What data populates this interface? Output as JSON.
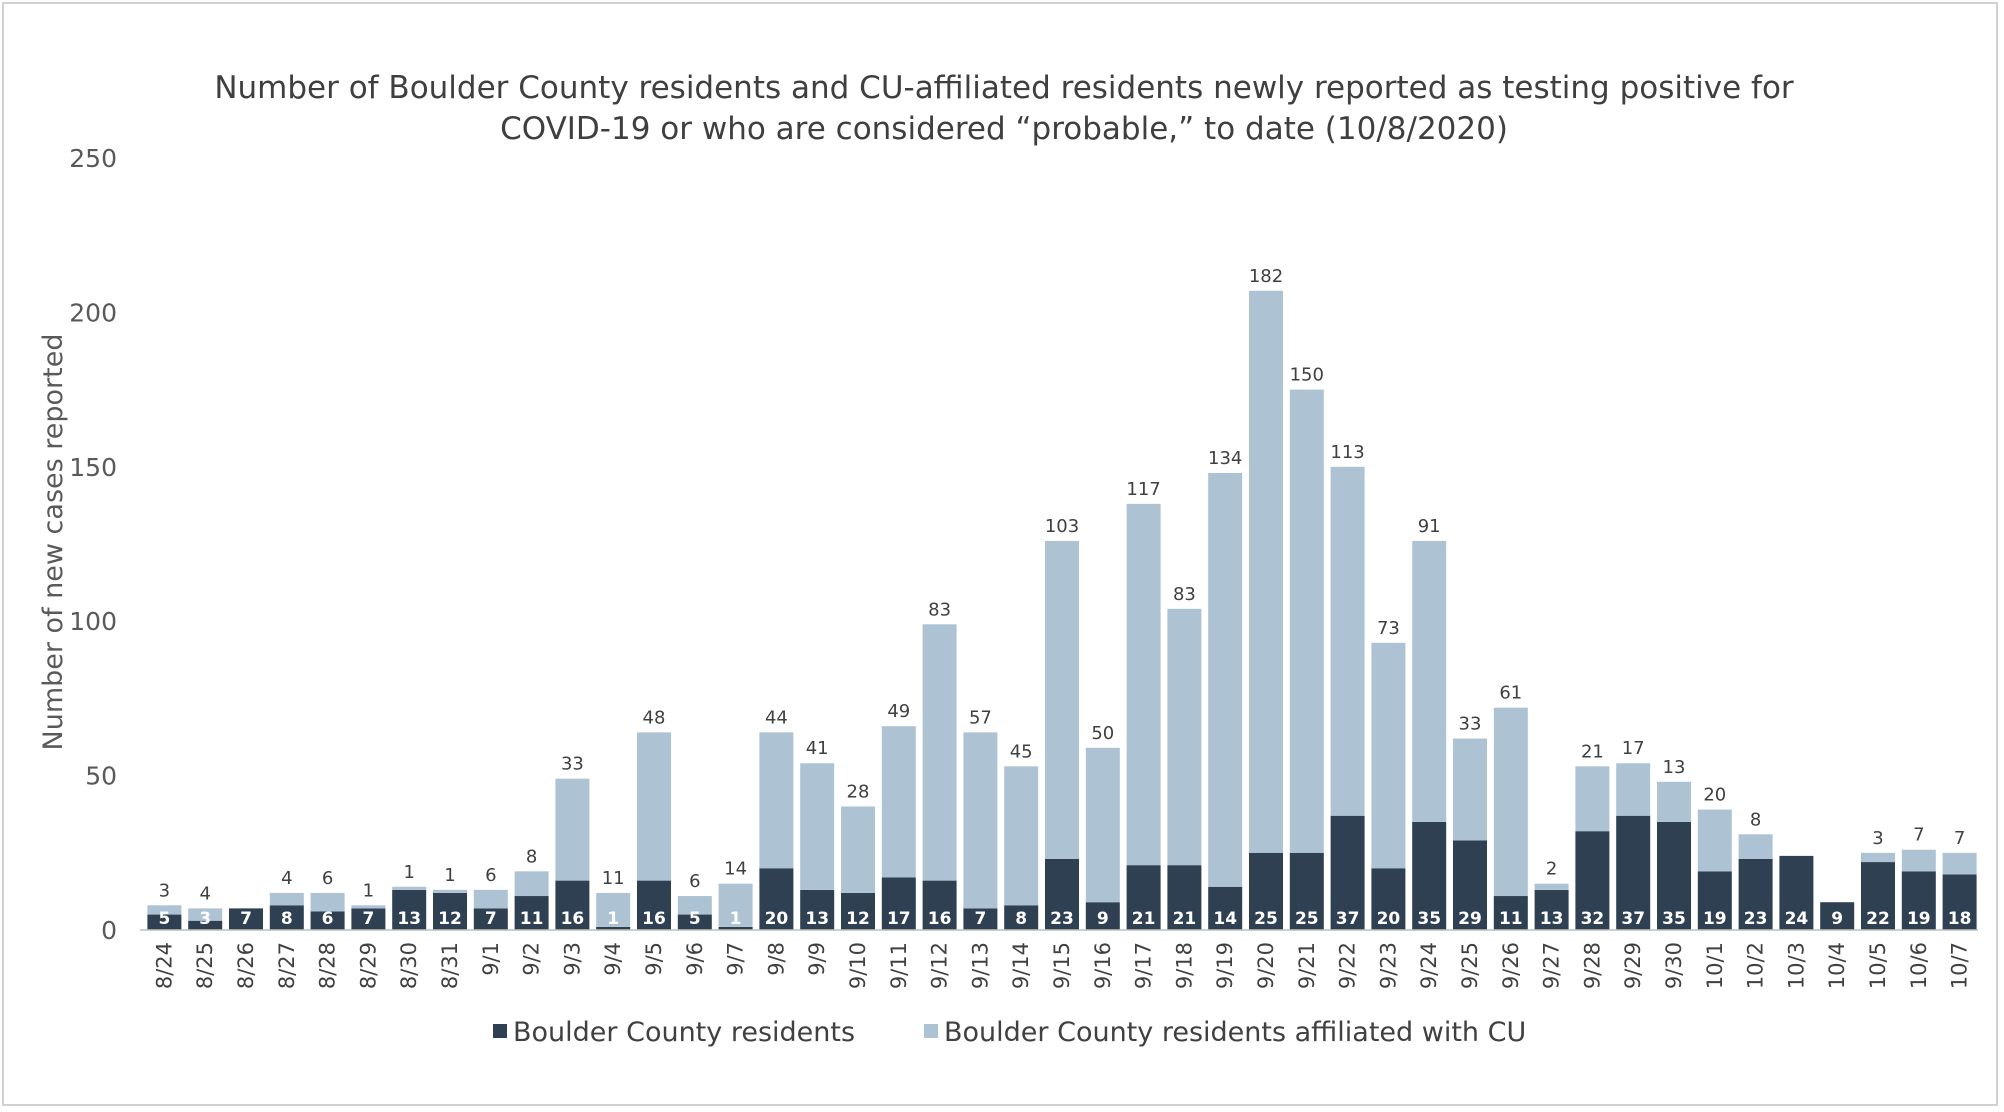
{
  "chart_data": {
    "type": "bar",
    "stacked": true,
    "title": "Number of Boulder County residents and CU-affiliated residents newly reported as testing positive for COVID-19 or who are considered “probable,” to date (10/8/2020)",
    "title_lines": [
      "Number of Boulder County residents and CU-affiliated residents newly reported as testing positive for",
      "COVID-19 or who are considered “probable,” to date (10/8/2020)"
    ],
    "xlabel": "",
    "ylabel": "Number of new cases reported",
    "ylim": [
      0,
      250
    ],
    "yticks": [
      0,
      50,
      100,
      150,
      200,
      250
    ],
    "grid": false,
    "legend_position": "bottom",
    "categories": [
      "8/24",
      "8/25",
      "8/26",
      "8/27",
      "8/28",
      "8/29",
      "8/30",
      "8/31",
      "9/1",
      "9/2",
      "9/3",
      "9/4",
      "9/5",
      "9/6",
      "9/7",
      "9/8",
      "9/9",
      "9/10",
      "9/11",
      "9/12",
      "9/13",
      "9/14",
      "9/15",
      "9/16",
      "9/17",
      "9/18",
      "9/19",
      "9/20",
      "9/21",
      "9/22",
      "9/23",
      "9/24",
      "9/25",
      "9/26",
      "9/27",
      "9/28",
      "9/29",
      "9/30",
      "10/1",
      "10/2",
      "10/3",
      "10/4",
      "10/5",
      "10/6",
      "10/7"
    ],
    "series": [
      {
        "name": "Boulder County residents",
        "color": "#2e4051",
        "values": [
          5,
          3,
          7,
          8,
          6,
          7,
          13,
          12,
          7,
          11,
          16,
          1,
          16,
          5,
          1,
          20,
          13,
          12,
          17,
          16,
          7,
          8,
          23,
          9,
          21,
          21,
          14,
          25,
          25,
          37,
          20,
          35,
          29,
          11,
          13,
          32,
          37,
          35,
          19,
          23,
          24,
          9,
          22,
          19,
          18
        ]
      },
      {
        "name": "Boulder County residents affiliated with CU",
        "color": "#adc3d4",
        "values": [
          3,
          4,
          0,
          4,
          6,
          1,
          1,
          1,
          6,
          8,
          33,
          11,
          48,
          6,
          14,
          44,
          41,
          28,
          49,
          83,
          57,
          45,
          103,
          50,
          117,
          83,
          134,
          182,
          150,
          113,
          73,
          91,
          33,
          61,
          2,
          21,
          17,
          13,
          20,
          8,
          0,
          0,
          3,
          7,
          7
        ]
      }
    ]
  }
}
